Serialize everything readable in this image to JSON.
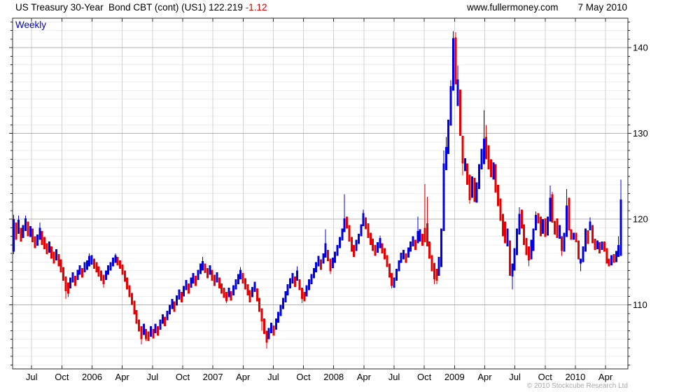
{
  "header": {
    "title": "US Treasury 30-Year  Bond CBT (cont) (US1) 122.219",
    "change": "-1.12",
    "change_color": "#cc0000",
    "website": "www.fullermoney.com",
    "date": "7 May 2010"
  },
  "chart": {
    "frequency_label": "Weekly",
    "frequency_color": "#0000bb",
    "copyright": "© 2010 Stockcube Research Ltd",
    "copyright_color": "#a8a8a8"
  },
  "chart_data": {
    "type": "candlestick",
    "title": "US Treasury 30-Year Bond CBT (cont) (US1)",
    "frequency": "weekly",
    "last_price": 122.219,
    "change": -1.12,
    "x_start": "May 2005",
    "x_end": "May 2010",
    "x_labels": [
      "Jul",
      "Oct",
      "2006",
      "Apr",
      "Jul",
      "Oct",
      "2007",
      "Apr",
      "Jul",
      "Oct",
      "2008",
      "Apr",
      "Jul",
      "Oct",
      "2009",
      "Apr",
      "Jul",
      "Oct",
      "2010",
      "Apr"
    ],
    "y_ticks": [
      110,
      120,
      130,
      140
    ],
    "ylim": [
      102.5,
      143.4
    ],
    "grid": "on",
    "legend": "none",
    "up_color": "#0000e0",
    "down_color": "#e80000",
    "bar_format": "[bodyLow, bodyHigh, up1down0, wickLow?, wickHigh?]",
    "bars": [
      [
        116.2,
        120.0,
        1,
        115.9,
        120.5
      ],
      [
        117.6,
        119.6,
        0
      ],
      [
        118.3,
        119.9,
        1,
        118.3,
        120.4
      ],
      [
        117.4,
        119.0,
        0
      ],
      [
        117.8,
        119.3,
        1
      ],
      [
        118.6,
        120.1,
        1,
        118.6,
        120.4
      ],
      [
        118.0,
        119.7,
        0
      ],
      [
        117.9,
        119.2,
        1
      ],
      [
        117.3,
        118.9,
        0
      ],
      [
        116.6,
        118.0,
        0
      ],
      [
        116.9,
        118.2,
        1
      ],
      [
        117.6,
        119.0,
        1,
        117.6,
        119.6
      ],
      [
        117.0,
        118.6,
        0
      ],
      [
        116.5,
        117.9,
        0
      ],
      [
        115.9,
        117.2,
        0
      ],
      [
        116.1,
        117.4,
        1
      ],
      [
        115.4,
        116.8,
        0
      ],
      [
        114.8,
        116.2,
        0
      ],
      [
        115.2,
        116.5,
        1
      ],
      [
        114.5,
        115.9,
        0
      ],
      [
        113.8,
        115.3,
        0
      ],
      [
        112.8,
        114.4,
        0
      ],
      [
        111.6,
        113.3,
        0,
        110.7,
        113.3
      ],
      [
        111.3,
        112.6,
        0,
        110.9,
        112.6
      ],
      [
        111.9,
        113.2,
        1
      ],
      [
        112.6,
        113.8,
        1
      ],
      [
        112.2,
        113.4,
        0
      ],
      [
        112.9,
        114.1,
        1
      ],
      [
        113.5,
        114.6,
        1
      ],
      [
        113.2,
        114.3,
        0
      ],
      [
        113.8,
        115.0,
        1
      ],
      [
        114.1,
        115.2,
        1
      ],
      [
        114.5,
        115.7,
        1,
        114.5,
        116.0
      ],
      [
        114.7,
        115.8,
        1
      ],
      [
        114.2,
        115.4,
        0
      ],
      [
        113.8,
        115.0,
        0
      ],
      [
        113.3,
        114.5,
        0
      ],
      [
        112.8,
        114.0,
        0
      ],
      [
        112.4,
        113.5,
        0,
        112.0,
        113.5
      ],
      [
        112.9,
        114.0,
        1
      ],
      [
        113.5,
        114.6,
        1
      ],
      [
        114.0,
        115.0,
        1
      ],
      [
        114.5,
        115.5,
        1
      ],
      [
        114.9,
        115.8,
        1,
        114.9,
        116.0
      ],
      [
        114.6,
        115.6,
        0
      ],
      [
        114.2,
        115.2,
        0
      ],
      [
        113.5,
        114.7,
        0
      ],
      [
        112.7,
        114.0,
        0
      ],
      [
        111.8,
        113.2,
        0
      ],
      [
        110.9,
        112.3,
        0
      ],
      [
        110.0,
        111.4,
        0
      ],
      [
        108.9,
        110.5,
        0
      ],
      [
        107.8,
        109.4,
        0
      ],
      [
        106.9,
        108.3,
        0
      ],
      [
        106.0,
        107.5,
        0,
        105.4,
        107.5
      ],
      [
        106.5,
        107.8,
        1
      ],
      [
        106.0,
        107.2,
        0,
        105.8,
        107.2
      ],
      [
        105.8,
        106.9,
        0
      ],
      [
        106.3,
        107.5,
        1
      ],
      [
        106.1,
        107.2,
        0
      ],
      [
        106.7,
        107.8,
        1
      ],
      [
        106.4,
        107.5,
        0
      ],
      [
        107.1,
        108.3,
        1
      ],
      [
        107.8,
        108.9,
        1
      ],
      [
        107.5,
        108.6,
        0
      ],
      [
        108.2,
        109.3,
        1
      ],
      [
        108.9,
        110.0,
        1
      ],
      [
        109.5,
        110.7,
        1
      ],
      [
        109.2,
        110.4,
        0
      ],
      [
        109.9,
        111.1,
        1
      ],
      [
        110.6,
        111.8,
        1
      ],
      [
        110.3,
        111.5,
        0
      ],
      [
        111.0,
        112.2,
        1
      ],
      [
        111.7,
        112.9,
        1
      ],
      [
        111.3,
        112.5,
        0
      ],
      [
        112.0,
        113.2,
        1
      ],
      [
        112.5,
        113.7,
        1
      ],
      [
        112.2,
        113.4,
        0
      ],
      [
        112.9,
        114.1,
        1
      ],
      [
        113.6,
        114.8,
        1
      ],
      [
        114.0,
        115.1,
        1,
        114.0,
        115.6
      ],
      [
        113.7,
        114.8,
        0
      ],
      [
        113.1,
        114.3,
        0
      ],
      [
        113.5,
        114.6,
        1
      ],
      [
        112.8,
        114.1,
        0
      ],
      [
        112.2,
        113.5,
        0
      ],
      [
        112.6,
        113.8,
        1
      ],
      [
        111.9,
        113.2,
        0
      ],
      [
        111.3,
        112.5,
        0
      ],
      [
        110.8,
        112.0,
        0
      ],
      [
        110.4,
        111.5,
        0,
        110.2,
        111.5
      ],
      [
        110.9,
        112.0,
        1
      ],
      [
        110.5,
        111.6,
        0
      ],
      [
        111.1,
        112.3,
        1
      ],
      [
        111.8,
        113.0,
        1
      ],
      [
        112.4,
        113.6,
        1
      ],
      [
        113.0,
        114.1,
        1,
        113.0,
        114.4
      ],
      [
        112.5,
        113.7,
        0
      ],
      [
        111.8,
        113.1,
        0
      ],
      [
        111.1,
        112.4,
        0
      ],
      [
        110.3,
        111.7,
        0
      ],
      [
        110.9,
        112.1,
        1
      ],
      [
        111.5,
        112.7,
        1
      ],
      [
        110.4,
        111.9,
        0
      ],
      [
        109.2,
        110.8,
        0
      ],
      [
        108.1,
        109.6,
        0,
        107.0,
        109.6
      ],
      [
        106.6,
        108.4,
        0
      ],
      [
        105.6,
        107.0,
        0,
        104.9,
        107.0
      ],
      [
        106.0,
        107.3,
        1
      ],
      [
        106.7,
        107.9,
        1
      ],
      [
        106.4,
        107.6,
        0
      ],
      [
        107.1,
        108.4,
        1
      ],
      [
        107.9,
        109.2,
        1
      ],
      [
        108.7,
        110.0,
        1
      ],
      [
        109.5,
        110.8,
        1
      ],
      [
        110.3,
        111.6,
        1
      ],
      [
        111.1,
        112.4,
        1
      ],
      [
        111.9,
        113.1,
        1
      ],
      [
        112.5,
        113.7,
        1
      ],
      [
        112.1,
        113.3,
        0
      ],
      [
        112.8,
        114.0,
        1,
        112.8,
        114.5
      ],
      [
        111.7,
        113.0,
        0
      ],
      [
        110.7,
        112.0,
        0,
        110.2,
        112.0
      ],
      [
        110.4,
        111.5,
        0
      ],
      [
        111.0,
        112.3,
        1
      ],
      [
        111.7,
        113.0,
        1
      ],
      [
        112.4,
        113.6,
        1
      ],
      [
        113.1,
        114.3,
        1
      ],
      [
        113.8,
        115.0,
        1
      ],
      [
        114.5,
        115.7,
        1
      ],
      [
        114.1,
        115.3,
        0
      ],
      [
        114.8,
        116.0,
        1
      ],
      [
        115.5,
        117.2,
        1,
        115.5,
        118.8
      ],
      [
        115.1,
        116.4,
        0
      ],
      [
        113.9,
        115.4,
        0,
        113.6,
        115.4
      ],
      [
        114.3,
        115.5,
        1
      ],
      [
        114.9,
        116.2,
        1
      ],
      [
        115.7,
        117.0,
        1
      ],
      [
        116.6,
        117.9,
        1
      ],
      [
        117.5,
        118.9,
        1
      ],
      [
        118.5,
        120.1,
        1,
        118.5,
        122.9
      ],
      [
        118.9,
        120.3,
        0
      ],
      [
        117.4,
        119.3,
        0
      ],
      [
        116.2,
        117.9,
        0
      ],
      [
        115.6,
        117.0,
        0
      ],
      [
        116.3,
        117.6,
        1
      ],
      [
        117.1,
        118.3,
        1
      ],
      [
        118.0,
        119.4,
        1
      ],
      [
        119.2,
        120.7,
        1,
        119.2,
        121.1
      ],
      [
        118.8,
        120.2,
        0
      ],
      [
        117.8,
        119.5,
        0
      ],
      [
        117.0,
        118.4,
        0
      ],
      [
        116.3,
        117.7,
        0
      ],
      [
        115.7,
        117.0,
        0
      ],
      [
        116.1,
        117.3,
        1
      ],
      [
        116.6,
        117.8,
        1,
        116.6,
        118.1
      ],
      [
        116.0,
        117.2,
        0
      ],
      [
        115.3,
        116.6,
        0
      ],
      [
        114.4,
        115.8,
        0
      ],
      [
        113.2,
        114.8,
        0
      ],
      [
        112.2,
        113.7,
        0,
        111.9,
        113.7
      ],
      [
        112.0,
        113.2,
        1
      ],
      [
        112.8,
        114.2,
        1
      ],
      [
        113.9,
        115.2,
        1
      ],
      [
        114.9,
        116.1,
        1
      ],
      [
        115.3,
        116.4,
        1
      ],
      [
        114.9,
        116.0,
        0
      ],
      [
        115.5,
        116.7,
        1
      ],
      [
        116.2,
        117.4,
        1
      ],
      [
        116.8,
        118.0,
        1
      ],
      [
        116.4,
        117.6,
        0
      ],
      [
        117.2,
        118.6,
        1,
        117.2,
        120.3
      ],
      [
        117.4,
        118.8,
        1
      ],
      [
        116.9,
        118.3,
        0
      ],
      [
        117.3,
        119.0,
        0,
        117.3,
        124.1
      ],
      [
        116.8,
        119.5,
        0,
        116.8,
        122.6
      ],
      [
        115.4,
        117.4,
        0
      ],
      [
        113.9,
        115.8,
        0
      ],
      [
        113.0,
        114.9,
        0,
        112.4,
        114.9
      ],
      [
        112.8,
        114.2,
        0,
        112.4,
        114.2
      ],
      [
        113.4,
        115.6,
        1
      ],
      [
        114.4,
        118.9,
        1
      ],
      [
        118.6,
        126.5,
        1,
        118.6,
        128.0
      ],
      [
        125.7,
        128.4,
        1,
        125.7,
        129.6
      ],
      [
        127.6,
        131.6,
        1
      ],
      [
        130.9,
        135.5,
        1,
        130.9,
        136.2
      ],
      [
        135.0,
        141.1,
        1,
        135.0,
        141.9
      ],
      [
        135.7,
        141.2,
        0,
        135.7,
        141.8
      ],
      [
        133.2,
        136.3,
        1,
        133.2,
        137.9
      ],
      [
        129.7,
        135.1,
        0
      ],
      [
        126.5,
        129.7,
        0,
        125.1,
        129.7
      ],
      [
        125.6,
        127.1,
        1
      ],
      [
        124.0,
        126.5,
        0
      ],
      [
        122.2,
        125.2,
        0,
        121.8,
        125.2
      ],
      [
        122.5,
        125.0,
        1
      ],
      [
        122.0,
        124.8,
        0
      ],
      [
        121.9,
        124.3,
        1
      ],
      [
        123.5,
        126.4,
        1
      ],
      [
        125.8,
        128.2,
        1
      ],
      [
        126.4,
        129.4,
        1,
        126.4,
        132.7
      ],
      [
        127.0,
        129.6,
        0,
        127.0,
        131.0
      ],
      [
        125.8,
        128.6,
        0
      ],
      [
        124.9,
        127.0,
        0
      ],
      [
        124.6,
        126.6,
        1
      ],
      [
        123.1,
        126.4,
        0
      ],
      [
        121.5,
        124.0,
        0
      ],
      [
        119.8,
        122.4,
        0
      ],
      [
        118.0,
        120.6,
        0
      ],
      [
        117.2,
        119.7,
        0
      ],
      [
        116.8,
        118.9,
        1
      ],
      [
        113.4,
        117.5,
        0
      ],
      [
        113.3,
        114.8,
        1,
        111.8,
        114.8
      ],
      [
        114.0,
        116.6,
        1
      ],
      [
        115.8,
        118.9,
        1
      ],
      [
        118.2,
        120.6,
        1,
        118.2,
        121.4
      ],
      [
        118.9,
        121.1,
        0
      ],
      [
        117.0,
        119.4,
        0
      ],
      [
        115.8,
        117.8,
        0
      ],
      [
        115.2,
        116.8,
        0,
        114.5,
        116.8
      ],
      [
        115.3,
        117.6,
        1
      ],
      [
        116.3,
        118.9,
        1
      ],
      [
        118.7,
        120.5,
        1,
        118.7,
        120.9
      ],
      [
        119.5,
        120.7,
        0
      ],
      [
        118.0,
        120.3,
        0
      ],
      [
        118.3,
        120.0,
        1
      ],
      [
        117.9,
        120.1,
        0
      ],
      [
        118.1,
        120.3,
        1
      ],
      [
        119.7,
        122.5,
        1,
        119.7,
        123.9
      ],
      [
        119.6,
        122.9,
        0,
        119.6,
        123.2
      ],
      [
        118.2,
        119.8,
        0
      ],
      [
        117.8,
        120.1,
        0
      ],
      [
        117.7,
        119.3,
        1
      ],
      [
        116.3,
        118.0,
        0,
        115.7,
        118.0
      ],
      [
        116.2,
        118.4,
        1
      ],
      [
        117.9,
        121.6,
        1,
        117.9,
        123.5
      ],
      [
        118.7,
        122.5,
        0
      ],
      [
        117.6,
        118.8,
        0
      ],
      [
        117.6,
        118.4,
        1
      ],
      [
        117.3,
        118.4,
        0
      ],
      [
        115.3,
        117.5,
        0
      ],
      [
        114.8,
        115.4,
        1,
        113.9,
        115.4
      ],
      [
        115.0,
        116.8,
        1
      ],
      [
        116.2,
        118.9,
        1
      ],
      [
        117.1,
        118.7,
        0
      ],
      [
        118.7,
        119.7,
        1,
        118.7,
        120.2
      ],
      [
        117.2,
        119.3,
        0
      ],
      [
        116.4,
        117.7,
        0
      ],
      [
        116.5,
        117.5,
        1
      ],
      [
        116.0,
        117.3,
        0
      ],
      [
        116.4,
        117.4,
        1
      ],
      [
        116.2,
        117.4,
        0
      ],
      [
        114.8,
        116.6,
        0
      ],
      [
        114.5,
        115.4,
        0
      ],
      [
        114.6,
        115.8,
        1
      ],
      [
        114.9,
        115.9,
        0
      ],
      [
        115.0,
        116.3,
        1
      ],
      [
        115.6,
        117.0,
        1,
        115.6,
        118.0
      ],
      [
        115.7,
        122.3,
        1,
        115.7,
        124.6
      ]
    ]
  }
}
